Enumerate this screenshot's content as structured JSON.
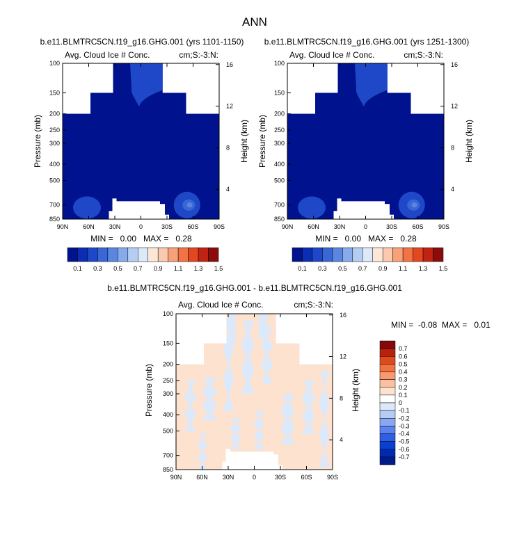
{
  "main_title": "ANN",
  "colors": {
    "background": "#ffffff",
    "missing": "#ffffff",
    "frame": "#000000",
    "abs_levels": [
      "#00128e",
      "#0a2db4",
      "#1e48c8",
      "#3a67d6",
      "#5a86e0",
      "#86aaeb",
      "#b4cdf3",
      "#dde9fb",
      "#fde7d7",
      "#fbc9ae",
      "#f8a079",
      "#f27345",
      "#e2481f",
      "#c22212",
      "#8c0c0c"
    ],
    "diff_levels": [
      "#001b8a",
      "#002bb0",
      "#0b3fd0",
      "#2d5ee6",
      "#5b82ee",
      "#8aa8f2",
      "#b5ccf7",
      "#dbe9fb",
      "#ffffff",
      "#fde3cf",
      "#fbc0a0",
      "#f8996f",
      "#f3703f",
      "#de4a1c",
      "#b8210b",
      "#840909"
    ]
  },
  "chart_data": [
    {
      "type": "heatmap",
      "title": "b.e11.BLMTRC5CN.f19_g16.GHG.001 (yrs 1101-1150)",
      "left_label": "Avg. Cloud Ice # Conc.",
      "right_label": "cm;S:-3:N:",
      "xlabel": "",
      "ylabel": "Pressure (mb)",
      "ylabel_right": "Height (km)",
      "x_ticks": [
        "90N",
        "60N",
        "30N",
        "0",
        "30S",
        "60S",
        "90S"
      ],
      "y_ticks": [
        "100",
        "150",
        "200",
        "250",
        "300",
        "400",
        "500",
        "700",
        "850"
      ],
      "height_ticks": [
        "16",
        "12",
        "8",
        "4"
      ],
      "min_max": "MIN =   0.00   MAX =   0.28",
      "colorbar_labels": [
        "0.1",
        "0.3",
        "0.5",
        "0.7",
        "0.9",
        "1.1",
        "1.3",
        "1.5"
      ],
      "xlim": [
        90,
        -90
      ],
      "ylim": [
        100,
        850
      ],
      "region_bands": [
        {
          "from": 100,
          "to": 150,
          "lat_range": [
            32,
            -25
          ]
        },
        {
          "from": 150,
          "to": 200,
          "lat_range": [
            58,
            -52
          ]
        },
        {
          "from": 200,
          "to": 850,
          "lat_range": [
            90,
            -90
          ]
        }
      ],
      "lower_gap": {
        "from": 665,
        "to": 850,
        "lat_range": [
          28,
          -22
        ]
      },
      "max_value": 0.28,
      "features": [
        {
          "lat": 30,
          "pressure": 108,
          "value": 0.06
        },
        {
          "lat": 5,
          "pressure": 118,
          "value": 0.08
        },
        {
          "lat": 62,
          "pressure": 725,
          "value": 0.12
        },
        {
          "lat": -53,
          "pressure": 700,
          "value": 0.22
        }
      ]
    },
    {
      "type": "heatmap",
      "title": "b.e11.BLMTRC5CN.f19_g16.GHG.001 (yrs 1251-1300)",
      "left_label": "Avg. Cloud Ice # Conc.",
      "right_label": "cm;S:-3:N:",
      "xlabel": "",
      "ylabel": "Pressure (mb)",
      "ylabel_right": "Height (km)",
      "x_ticks": [
        "90N",
        "60N",
        "30N",
        "0",
        "30S",
        "60S",
        "90S"
      ],
      "y_ticks": [
        "100",
        "150",
        "200",
        "250",
        "300",
        "400",
        "500",
        "700",
        "850"
      ],
      "height_ticks": [
        "16",
        "12",
        "8",
        "4"
      ],
      "min_max": "MIN =   0.00   MAX =   0.28",
      "colorbar_labels": [
        "0.1",
        "0.3",
        "0.5",
        "0.7",
        "0.9",
        "1.1",
        "1.3",
        "1.5"
      ],
      "xlim": [
        90,
        -90
      ],
      "ylim": [
        100,
        850
      ],
      "region_bands": [
        {
          "from": 100,
          "to": 150,
          "lat_range": [
            32,
            -25
          ]
        },
        {
          "from": 150,
          "to": 200,
          "lat_range": [
            58,
            -52
          ]
        },
        {
          "from": 200,
          "to": 850,
          "lat_range": [
            90,
            -90
          ]
        }
      ],
      "lower_gap": {
        "from": 665,
        "to": 850,
        "lat_range": [
          28,
          -22
        ]
      },
      "max_value": 0.28,
      "features": [
        {
          "lat": 30,
          "pressure": 108,
          "value": 0.06
        },
        {
          "lat": 5,
          "pressure": 118,
          "value": 0.08
        },
        {
          "lat": 62,
          "pressure": 725,
          "value": 0.12
        },
        {
          "lat": -53,
          "pressure": 700,
          "value": 0.22
        }
      ]
    },
    {
      "type": "heatmap",
      "title": "b.e11.BLMTRC5CN.f19_g16.GHG.001 - b.e11.BLMTRC5CN.f19_g16.GHG.001",
      "left_label": "Avg. Cloud Ice # Conc.",
      "right_label": "cm;S:-3:N:",
      "xlabel": "",
      "ylabel": "Pressure (mb)",
      "ylabel_right": "Height (km)",
      "x_ticks": [
        "90N",
        "60N",
        "30N",
        "0",
        "30S",
        "60S",
        "90S"
      ],
      "y_ticks": [
        "100",
        "150",
        "200",
        "250",
        "300",
        "400",
        "500",
        "700",
        "850"
      ],
      "height_ticks": [
        "16",
        "12",
        "8",
        "4"
      ],
      "min_max": "MIN =  -0.08  MAX =   0.01",
      "colorbar_labels": [
        "0.7",
        "0.6",
        "0.5",
        "0.4",
        "0.3",
        "0.2",
        "0.1",
        "0",
        "-0.1",
        "-0.2",
        "-0.3",
        "-0.4",
        "-0.5",
        "-0.6",
        "-0.7"
      ],
      "xlim": [
        90,
        -90
      ],
      "ylim": [
        100,
        850
      ],
      "region_bands": [
        {
          "from": 100,
          "to": 150,
          "lat_range": [
            32,
            -25
          ]
        },
        {
          "from": 150,
          "to": 200,
          "lat_range": [
            58,
            -52
          ]
        },
        {
          "from": 200,
          "to": 850,
          "lat_range": [
            90,
            -90
          ]
        }
      ],
      "lower_gap": {
        "from": 665,
        "to": 850,
        "lat_range": [
          28,
          -22
        ]
      },
      "value_range": [
        -0.08,
        0.01
      ]
    }
  ]
}
